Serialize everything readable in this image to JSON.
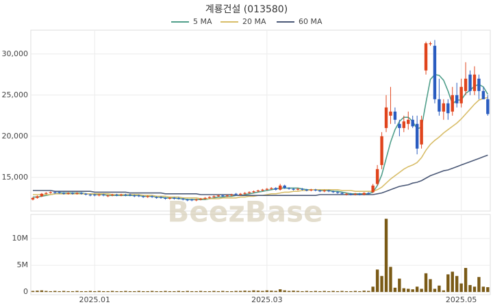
{
  "chart_data": {
    "type": "candlestick",
    "title": "계룡건설 (013580)",
    "watermark": "BeezBase",
    "up_color": "#e0441c",
    "down_color": "#2a5cc0",
    "grid": true,
    "categories": [
      null,
      null,
      null,
      null,
      null,
      null,
      null,
      null,
      null,
      null,
      null,
      null,
      null,
      null,
      "2025.01",
      null,
      null,
      null,
      null,
      null,
      null,
      null,
      null,
      null,
      null,
      null,
      null,
      null,
      null,
      null,
      null,
      null,
      null,
      null,
      null,
      null,
      null,
      null,
      null,
      null,
      null,
      null,
      null,
      null,
      null,
      null,
      null,
      null,
      null,
      null,
      null,
      null,
      null,
      "2025.03",
      null,
      null,
      null,
      null,
      null,
      null,
      null,
      null,
      null,
      null,
      null,
      null,
      null,
      null,
      null,
      null,
      null,
      null,
      null,
      null,
      null,
      null,
      null,
      null,
      null,
      null,
      null,
      null,
      null,
      null,
      null,
      null,
      null,
      null,
      null,
      null,
      null,
      null,
      null,
      null,
      null,
      null,
      null,
      "2025.05",
      null,
      null,
      null,
      null,
      null,
      null
    ],
    "open": [
      12300,
      12500,
      12700,
      13000,
      13100,
      13200,
      13200,
      13100,
      13000,
      13100,
      13000,
      13100,
      13000,
      12900,
      12900,
      12800,
      12900,
      12700,
      12800,
      12900,
      12800,
      12900,
      12900,
      12800,
      12800,
      12700,
      12600,
      12700,
      12600,
      12600,
      12500,
      12400,
      12500,
      12500,
      12400,
      12300,
      12300,
      12200,
      12300,
      12400,
      12500,
      12600,
      12700,
      12800,
      12700,
      12800,
      13000,
      12900,
      13000,
      13100,
      13200,
      13300,
      13400,
      13500,
      13600,
      13700,
      13500,
      14000,
      13700,
      13600,
      13500,
      13600,
      13500,
      13400,
      13500,
      13400,
      13300,
      13400,
      13300,
      13200,
      13100,
      12900,
      13000,
      12900,
      13000,
      12900,
      13100,
      13200,
      14200,
      16500,
      21000,
      22500,
      23000,
      21500,
      21000,
      21500,
      22000,
      21500,
      19000,
      28000,
      31200,
      31000,
      24500,
      23000,
      24000,
      23000,
      25000,
      24000,
      25500,
      27500,
      25500,
      27000,
      25500,
      24500
    ],
    "high": [
      12600,
      12800,
      13100,
      13200,
      13300,
      13300,
      13300,
      13200,
      13200,
      13200,
      13200,
      13200,
      13100,
      13000,
      13000,
      13000,
      13000,
      12900,
      13000,
      13000,
      13000,
      13000,
      13000,
      12900,
      12900,
      12800,
      12800,
      12800,
      12700,
      12700,
      12600,
      12600,
      12600,
      12600,
      12500,
      12400,
      12400,
      12400,
      12500,
      12600,
      12700,
      12800,
      12900,
      12900,
      12900,
      13000,
      13100,
      13100,
      13200,
      13300,
      13400,
      13500,
      13600,
      13700,
      13800,
      13800,
      14200,
      14100,
      13800,
      13700,
      13700,
      13700,
      13600,
      13600,
      13600,
      13500,
      13500,
      13500,
      13400,
      13300,
      13200,
      13100,
      13100,
      13100,
      13100,
      13200,
      13200,
      14200,
      16500,
      20500,
      25000,
      26000,
      23500,
      22000,
      22500,
      23000,
      22500,
      22500,
      22500,
      31500,
      31500,
      31700,
      27000,
      24500,
      24500,
      26000,
      26500,
      27000,
      29000,
      28000,
      28500,
      27500,
      26000,
      25000
    ],
    "low": [
      12200,
      12400,
      12600,
      12900,
      13000,
      13000,
      13000,
      12900,
      12900,
      12900,
      12900,
      12900,
      12800,
      12700,
      12700,
      12700,
      12700,
      12600,
      12700,
      12700,
      12700,
      12700,
      12700,
      12600,
      12600,
      12500,
      12500,
      12500,
      12400,
      12400,
      12300,
      12300,
      12300,
      12300,
      12200,
      12100,
      12100,
      12100,
      12200,
      12300,
      12400,
      12500,
      12600,
      12600,
      12600,
      12700,
      12800,
      12800,
      12900,
      13000,
      13100,
      13200,
      13300,
      13400,
      13500,
      13400,
      13400,
      13600,
      13500,
      13400,
      13400,
      13400,
      13300,
      13300,
      13300,
      13200,
      13200,
      13200,
      13100,
      13000,
      12900,
      12800,
      12800,
      12800,
      12800,
      12800,
      12900,
      13100,
      14000,
      16000,
      20500,
      21500,
      21500,
      20000,
      20500,
      20800,
      21000,
      17800,
      18500,
      27500,
      31000,
      24000,
      22500,
      22000,
      22000,
      22500,
      23500,
      23500,
      25000,
      25000,
      25000,
      24500,
      24500,
      22500
    ],
    "close": [
      12500,
      12700,
      13000,
      13100,
      13200,
      13100,
      13100,
      13000,
      13100,
      13000,
      13100,
      13000,
      12900,
      12800,
      12800,
      12900,
      12800,
      12800,
      12900,
      12800,
      12900,
      12800,
      12800,
      12700,
      12700,
      12600,
      12700,
      12600,
      12500,
      12500,
      12400,
      12500,
      12400,
      12400,
      12300,
      12200,
      12200,
      12300,
      12400,
      12500,
      12600,
      12700,
      12800,
      12700,
      12800,
      12900,
      12900,
      13000,
      13100,
      13200,
      13300,
      13400,
      13500,
      13600,
      13700,
      13500,
      14000,
      13700,
      13600,
      13500,
      13600,
      13500,
      13400,
      13500,
      13400,
      13300,
      13400,
      13300,
      13200,
      13100,
      13000,
      13000,
      12900,
      13000,
      12900,
      13100,
      13000,
      14000,
      16000,
      20000,
      23500,
      23000,
      22000,
      21000,
      21800,
      22000,
      21200,
      18500,
      22000,
      31300,
      31300,
      24500,
      23000,
      24000,
      22800,
      25000,
      24000,
      26000,
      27000,
      25500,
      27500,
      25500,
      24500,
      22700
    ],
    "series": [
      {
        "name": "5 MA",
        "color": "#4f9e8a",
        "values": [
          12600,
          12600,
          12700,
          12800,
          12900,
          13000,
          13100,
          13100,
          13100,
          13100,
          13100,
          13100,
          13000,
          13000,
          12900,
          12900,
          12900,
          12800,
          12800,
          12800,
          12800,
          12800,
          12800,
          12800,
          12800,
          12700,
          12700,
          12700,
          12600,
          12600,
          12500,
          12500,
          12500,
          12400,
          12400,
          12300,
          12300,
          12300,
          12300,
          12300,
          12400,
          12500,
          12600,
          12600,
          12700,
          12700,
          12800,
          12800,
          12900,
          13000,
          13100,
          13200,
          13300,
          13400,
          13500,
          13600,
          13700,
          13700,
          13700,
          13700,
          13700,
          13600,
          13500,
          13500,
          13500,
          13400,
          13400,
          13400,
          13300,
          13300,
          13200,
          13100,
          13000,
          13000,
          13000,
          13000,
          13000,
          13200,
          14000,
          15300,
          17300,
          19300,
          20800,
          21800,
          22300,
          22300,
          21800,
          20900,
          21100,
          24100,
          26900,
          27500,
          27400,
          26800,
          25500,
          23900,
          24400,
          24400,
          25200,
          25600,
          26100,
          26300,
          26000,
          25100
        ]
      },
      {
        "name": "20 MA",
        "color": "#d8bd68",
        "values": [
          12900,
          12900,
          12900,
          12900,
          12900,
          13000,
          13000,
          13000,
          13000,
          13000,
          13000,
          13000,
          13000,
          13000,
          13000,
          13000,
          13000,
          13000,
          12900,
          12900,
          12900,
          12900,
          12900,
          12900,
          12900,
          12800,
          12800,
          12800,
          12700,
          12700,
          12700,
          12600,
          12600,
          12600,
          12500,
          12500,
          12500,
          12500,
          12400,
          12400,
          12400,
          12400,
          12400,
          12500,
          12500,
          12500,
          12500,
          12600,
          12600,
          12700,
          12700,
          12800,
          12800,
          12900,
          13000,
          13000,
          13100,
          13200,
          13200,
          13300,
          13300,
          13400,
          13400,
          13500,
          13500,
          13500,
          13500,
          13500,
          13500,
          13500,
          13400,
          13400,
          13400,
          13300,
          13300,
          13300,
          13300,
          13300,
          13500,
          13800,
          14300,
          14800,
          15200,
          15600,
          16000,
          16300,
          16500,
          16800,
          17400,
          18300,
          19000,
          19500,
          19900,
          20400,
          20800,
          21200,
          21600,
          22100,
          22700,
          23300,
          23900,
          24400,
          24600,
          24700
        ]
      },
      {
        "name": "60 MA",
        "color": "#4a5876",
        "values": [
          13400,
          13400,
          13400,
          13400,
          13400,
          13300,
          13300,
          13300,
          13300,
          13300,
          13300,
          13300,
          13300,
          13300,
          13200,
          13200,
          13200,
          13200,
          13200,
          13200,
          13200,
          13200,
          13100,
          13100,
          13100,
          13100,
          13100,
          13100,
          13100,
          13100,
          13000,
          13000,
          13000,
          13000,
          13000,
          13000,
          13000,
          13000,
          12900,
          12900,
          12900,
          12900,
          12900,
          12900,
          12900,
          12900,
          12800,
          12800,
          12800,
          12800,
          12800,
          12800,
          12800,
          12800,
          12800,
          12800,
          12800,
          12800,
          12800,
          12800,
          12800,
          12800,
          12800,
          12800,
          12800,
          12900,
          12900,
          12900,
          12900,
          12900,
          12900,
          12900,
          12900,
          12900,
          12900,
          12900,
          12900,
          12900,
          13000,
          13100,
          13300,
          13500,
          13700,
          13900,
          14000,
          14100,
          14300,
          14400,
          14600,
          14900,
          15200,
          15400,
          15600,
          15800,
          15900,
          16100,
          16300,
          16500,
          16700,
          16900,
          17100,
          17300,
          17500,
          17700
        ]
      }
    ],
    "ylim": [
      10900,
      32900
    ],
    "yticks": [
      {
        "value": 15000,
        "label": "15,000"
      },
      {
        "value": 20000,
        "label": "20,000"
      },
      {
        "value": 25000,
        "label": "25,000"
      },
      {
        "value": 30000,
        "label": "30,000"
      }
    ],
    "volume": {
      "color": "#7a5a16",
      "ylim": [
        -500000,
        14500000
      ],
      "yticks": [
        0,
        {
          "value": 5000000,
          "label": "5M"
        },
        {
          "value": 10000000,
          "label": "10M"
        }
      ],
      "values": [
        200000,
        250000,
        300000,
        200000,
        150000,
        200000,
        150000,
        200000,
        150000,
        150000,
        200000,
        150000,
        150000,
        200000,
        150000,
        200000,
        150000,
        150000,
        200000,
        150000,
        150000,
        200000,
        150000,
        150000,
        200000,
        150000,
        150000,
        200000,
        150000,
        150000,
        200000,
        150000,
        150000,
        200000,
        150000,
        200000,
        150000,
        150000,
        200000,
        150000,
        150000,
        200000,
        150000,
        200000,
        150000,
        150000,
        200000,
        200000,
        250000,
        200000,
        300000,
        250000,
        200000,
        300000,
        250000,
        200000,
        500000,
        300000,
        200000,
        250000,
        200000,
        150000,
        200000,
        150000,
        200000,
        150000,
        200000,
        150000,
        200000,
        150000,
        200000,
        150000,
        150000,
        200000,
        150000,
        250000,
        200000,
        1000000,
        4200000,
        3000000,
        13700000,
        4700000,
        800000,
        2500000,
        700000,
        600000,
        500000,
        1000000,
        600000,
        3500000,
        2400000,
        600000,
        1200000,
        300000,
        3300000,
        3800000,
        3000000,
        1600000,
        4500000,
        1300000,
        1000000,
        2800000,
        1000000,
        900000
      ]
    }
  }
}
